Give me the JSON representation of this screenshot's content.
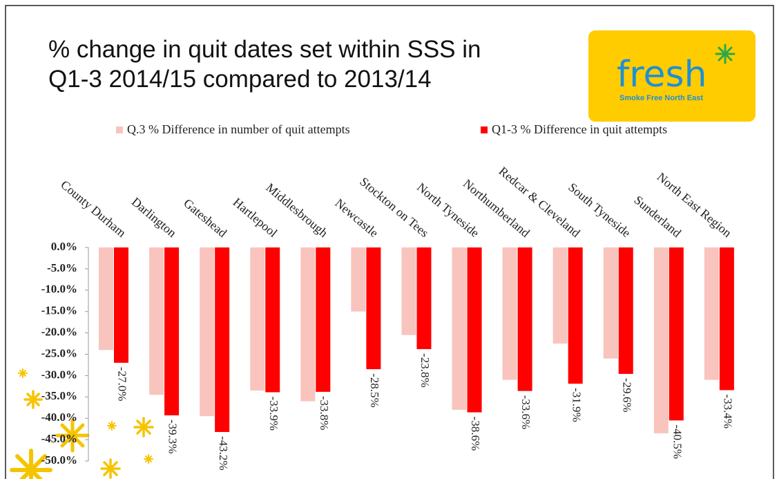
{
  "logo": {
    "name": "fresh",
    "tagline": "Smoke Free North East"
  },
  "chart_data": {
    "type": "bar",
    "title": [
      "% change in quit dates set within SSS in",
      "Q1-3 2014/15 compared to 2013/14"
    ],
    "categories": [
      "County Durham",
      "Darlington",
      "Gateshead",
      "Hartlepool",
      "Middlesbrough",
      "Newcastle",
      "Stockton on Tees",
      "North Tyneside",
      "Northumberland",
      "Redcar & Cleveland",
      "South Tyneside",
      "Sunderland",
      "North East Region"
    ],
    "series": [
      {
        "name": "Q.3 % Difference in number of quit attempts",
        "color": "#f8c4bd",
        "values": [
          -24,
          -34.5,
          -39.5,
          -33.5,
          -36,
          -15,
          -20.5,
          -38,
          -31,
          -22.5,
          -26,
          -43.5,
          -31
        ]
      },
      {
        "name": "Q1-3 % Difference in quit attempts",
        "color": "#ff0000",
        "values": [
          -27.0,
          -39.3,
          -43.2,
          -33.9,
          -33.8,
          -28.5,
          -23.8,
          -38.6,
          -33.6,
          -31.9,
          -29.6,
          -40.5,
          -33.4
        ],
        "value_labels": [
          "-27.0%",
          "-39.3%",
          "-43.2%",
          "-33.9%",
          "-33.8%",
          "-28.5%",
          "-23.8%",
          "-38.6%",
          "-33.6%",
          "-31.9%",
          "-29.6%",
          "-40.5%",
          "-33.4%"
        ]
      }
    ],
    "ylim": [
      -50,
      0
    ],
    "yticks": [
      {
        "value": 0,
        "label": "0.0%"
      },
      {
        "value": -5,
        "label": "-5.0%"
      },
      {
        "value": -10,
        "label": "-10.0%"
      },
      {
        "value": -15,
        "label": "-15.0%"
      },
      {
        "value": -20,
        "label": "-20.0%"
      },
      {
        "value": -25,
        "label": "-25.0%"
      },
      {
        "value": -30,
        "label": "-30.0%"
      },
      {
        "value": -35,
        "label": "-35.0%"
      },
      {
        "value": -40,
        "label": "-40.0%"
      },
      {
        "value": -45,
        "label": "-45.0%"
      },
      {
        "value": -50,
        "label": "-50.0%"
      }
    ],
    "grid": false,
    "legend": "top"
  }
}
